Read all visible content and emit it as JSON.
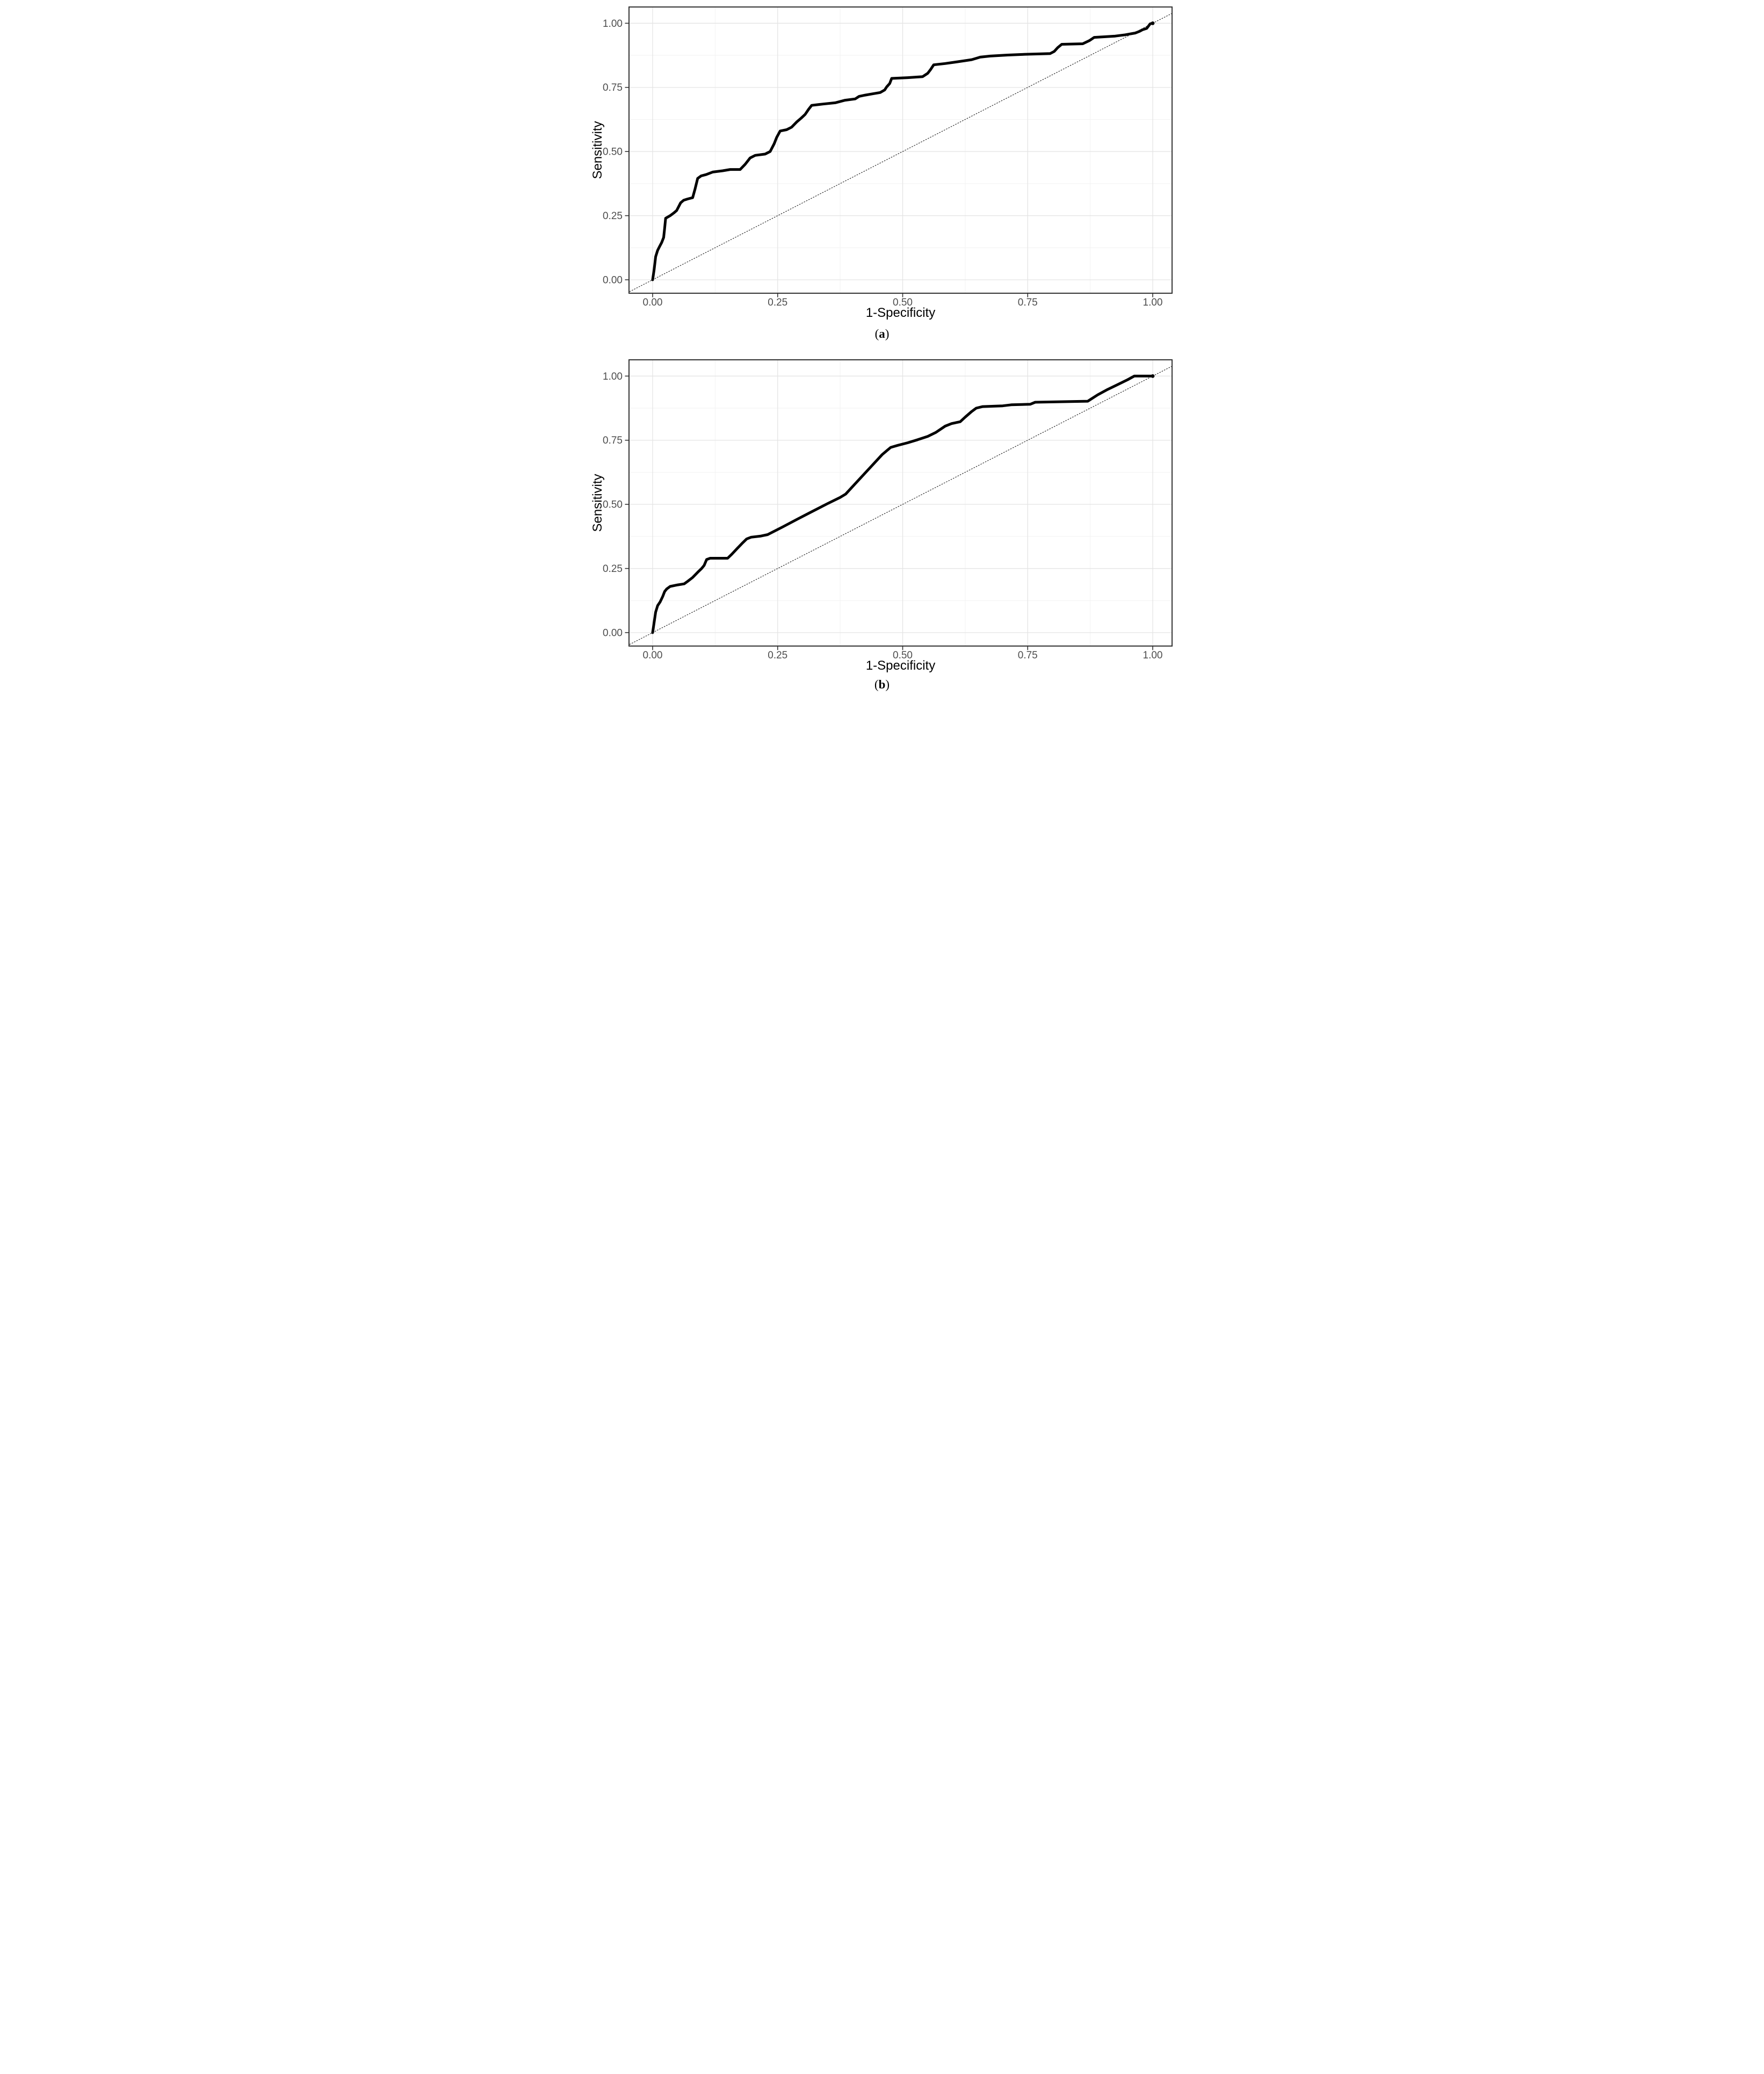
{
  "figure": {
    "captions": {
      "a": {
        "open": "(",
        "letter": "a",
        "close": ")"
      },
      "b": {
        "open": "(",
        "letter": "b",
        "close": ")"
      }
    }
  },
  "colors": {
    "curve": "#000000",
    "diagonal": "#1a1a1a",
    "grid_major": "#e4e4e4",
    "grid_minor": "#f2f2f2",
    "axis_text": "#4d4d4d",
    "axis_title": "#000000",
    "panel_border": "#333333",
    "background": "#ffffff",
    "end_dot": "#000000"
  },
  "chart_data": [
    {
      "type": "line",
      "panel": "a",
      "title": "",
      "xlabel": "1-Specificity",
      "ylabel": "Sensitivity",
      "xlim": [
        -0.048,
        1.039
      ],
      "ylim": [
        -0.052,
        1.063
      ],
      "grid": "major+minor",
      "legend": "none",
      "x_ticks": {
        "values": [
          0,
          0.25,
          0.5,
          0.75,
          1.0
        ],
        "labels": [
          "0.00",
          "0.25",
          "0.50",
          "0.75",
          "1.00"
        ]
      },
      "y_ticks": {
        "values": [
          0,
          0.25,
          0.5,
          0.75,
          1.0
        ],
        "labels": [
          "0.00",
          "0.25",
          "0.50",
          "0.75",
          "1.00"
        ]
      },
      "end_marker": {
        "x": 1,
        "y": 1
      },
      "series": [
        {
          "name": "ROC curve",
          "kind": "roc-step-curve",
          "color": "#000000",
          "points": [
            [
              0,
              0
            ],
            [
              0.003,
              0.04
            ],
            [
              0.006,
              0.09
            ],
            [
              0.01,
              0.115
            ],
            [
              0.014,
              0.13
            ],
            [
              0.018,
              0.145
            ],
            [
              0.022,
              0.165
            ],
            [
              0.024,
              0.2
            ],
            [
              0.026,
              0.24
            ],
            [
              0.035,
              0.25
            ],
            [
              0.042,
              0.26
            ],
            [
              0.048,
              0.27
            ],
            [
              0.052,
              0.285
            ],
            [
              0.056,
              0.3
            ],
            [
              0.062,
              0.31
            ],
            [
              0.07,
              0.315
            ],
            [
              0.08,
              0.32
            ],
            [
              0.085,
              0.355
            ],
            [
              0.09,
              0.395
            ],
            [
              0.097,
              0.405
            ],
            [
              0.107,
              0.41
            ],
            [
              0.12,
              0.42
            ],
            [
              0.14,
              0.425
            ],
            [
              0.155,
              0.43
            ],
            [
              0.175,
              0.43
            ],
            [
              0.185,
              0.45
            ],
            [
              0.195,
              0.475
            ],
            [
              0.205,
              0.485
            ],
            [
              0.225,
              0.49
            ],
            [
              0.235,
              0.5
            ],
            [
              0.243,
              0.53
            ],
            [
              0.248,
              0.555
            ],
            [
              0.255,
              0.58
            ],
            [
              0.268,
              0.585
            ],
            [
              0.278,
              0.595
            ],
            [
              0.288,
              0.615
            ],
            [
              0.297,
              0.63
            ],
            [
              0.305,
              0.645
            ],
            [
              0.312,
              0.665
            ],
            [
              0.318,
              0.68
            ],
            [
              0.34,
              0.685
            ],
            [
              0.365,
              0.69
            ],
            [
              0.385,
              0.7
            ],
            [
              0.405,
              0.705
            ],
            [
              0.413,
              0.715
            ],
            [
              0.425,
              0.72
            ],
            [
              0.44,
              0.725
            ],
            [
              0.455,
              0.73
            ],
            [
              0.464,
              0.74
            ],
            [
              0.468,
              0.752
            ],
            [
              0.474,
              0.765
            ],
            [
              0.478,
              0.785
            ],
            [
              0.51,
              0.788
            ],
            [
              0.54,
              0.792
            ],
            [
              0.55,
              0.805
            ],
            [
              0.556,
              0.82
            ],
            [
              0.562,
              0.838
            ],
            [
              0.585,
              0.843
            ],
            [
              0.61,
              0.85
            ],
            [
              0.638,
              0.858
            ],
            [
              0.655,
              0.868
            ],
            [
              0.675,
              0.872
            ],
            [
              0.71,
              0.876
            ],
            [
              0.745,
              0.879
            ],
            [
              0.795,
              0.882
            ],
            [
              0.803,
              0.89
            ],
            [
              0.81,
              0.905
            ],
            [
              0.818,
              0.918
            ],
            [
              0.86,
              0.92
            ],
            [
              0.873,
              0.932
            ],
            [
              0.883,
              0.945
            ],
            [
              0.925,
              0.95
            ],
            [
              0.945,
              0.955
            ],
            [
              0.965,
              0.962
            ],
            [
              0.973,
              0.968
            ],
            [
              0.98,
              0.975
            ],
            [
              0.988,
              0.98
            ],
            [
              0.995,
              0.998
            ],
            [
              1,
              1
            ]
          ]
        },
        {
          "name": "chance diagonal",
          "kind": "reference-line",
          "color": "#1a1a1a",
          "points": [
            [
              -0.06,
              -0.06
            ],
            [
              1.07,
              1.07
            ]
          ]
        }
      ]
    },
    {
      "type": "line",
      "panel": "b",
      "title": "",
      "xlabel": "1-Specificity",
      "ylabel": "Sensitivity",
      "xlim": [
        -0.048,
        1.039
      ],
      "ylim": [
        -0.052,
        1.063
      ],
      "grid": "major+minor",
      "legend": "none",
      "x_ticks": {
        "values": [
          0,
          0.25,
          0.5,
          0.75,
          1.0
        ],
        "labels": [
          "0.00",
          "0.25",
          "0.50",
          "0.75",
          "1.00"
        ]
      },
      "y_ticks": {
        "values": [
          0,
          0.25,
          0.5,
          0.75,
          1.0
        ],
        "labels": [
          "0.00",
          "0.25",
          "0.50",
          "0.75",
          "1.00"
        ]
      },
      "end_marker": {
        "x": 1,
        "y": 1
      },
      "series": [
        {
          "name": "ROC curve",
          "kind": "roc-step-curve",
          "color": "#000000",
          "points": [
            [
              0,
              0
            ],
            [
              0.003,
              0.04
            ],
            [
              0.006,
              0.08
            ],
            [
              0.01,
              0.105
            ],
            [
              0.015,
              0.12
            ],
            [
              0.02,
              0.14
            ],
            [
              0.024,
              0.16
            ],
            [
              0.028,
              0.17
            ],
            [
              0.035,
              0.18
            ],
            [
              0.05,
              0.186
            ],
            [
              0.063,
              0.19
            ],
            [
              0.07,
              0.2
            ],
            [
              0.08,
              0.215
            ],
            [
              0.09,
              0.235
            ],
            [
              0.098,
              0.25
            ],
            [
              0.103,
              0.262
            ],
            [
              0.108,
              0.285
            ],
            [
              0.115,
              0.29
            ],
            [
              0.15,
              0.29
            ],
            [
              0.158,
              0.305
            ],
            [
              0.17,
              0.33
            ],
            [
              0.18,
              0.35
            ],
            [
              0.188,
              0.365
            ],
            [
              0.197,
              0.372
            ],
            [
              0.215,
              0.376
            ],
            [
              0.23,
              0.382
            ],
            [
              0.26,
              0.412
            ],
            [
              0.29,
              0.443
            ],
            [
              0.32,
              0.473
            ],
            [
              0.35,
              0.503
            ],
            [
              0.375,
              0.527
            ],
            [
              0.386,
              0.54
            ],
            [
              0.403,
              0.576
            ],
            [
              0.422,
              0.616
            ],
            [
              0.441,
              0.656
            ],
            [
              0.459,
              0.694
            ],
            [
              0.476,
              0.722
            ],
            [
              0.49,
              0.73
            ],
            [
              0.51,
              0.74
            ],
            [
              0.53,
              0.752
            ],
            [
              0.55,
              0.765
            ],
            [
              0.566,
              0.78
            ],
            [
              0.585,
              0.805
            ],
            [
              0.598,
              0.815
            ],
            [
              0.615,
              0.822
            ],
            [
              0.625,
              0.84
            ],
            [
              0.638,
              0.862
            ],
            [
              0.647,
              0.875
            ],
            [
              0.66,
              0.881
            ],
            [
              0.7,
              0.884
            ],
            [
              0.717,
              0.888
            ],
            [
              0.755,
              0.89
            ],
            [
              0.765,
              0.898
            ],
            [
              0.87,
              0.902
            ],
            [
              0.89,
              0.927
            ],
            [
              0.91,
              0.948
            ],
            [
              0.93,
              0.967
            ],
            [
              0.95,
              0.986
            ],
            [
              0.963,
              1
            ],
            [
              1,
              1
            ]
          ]
        },
        {
          "name": "chance diagonal",
          "kind": "reference-line",
          "color": "#1a1a1a",
          "points": [
            [
              -0.06,
              -0.06
            ],
            [
              1.07,
              1.07
            ]
          ]
        }
      ]
    }
  ]
}
